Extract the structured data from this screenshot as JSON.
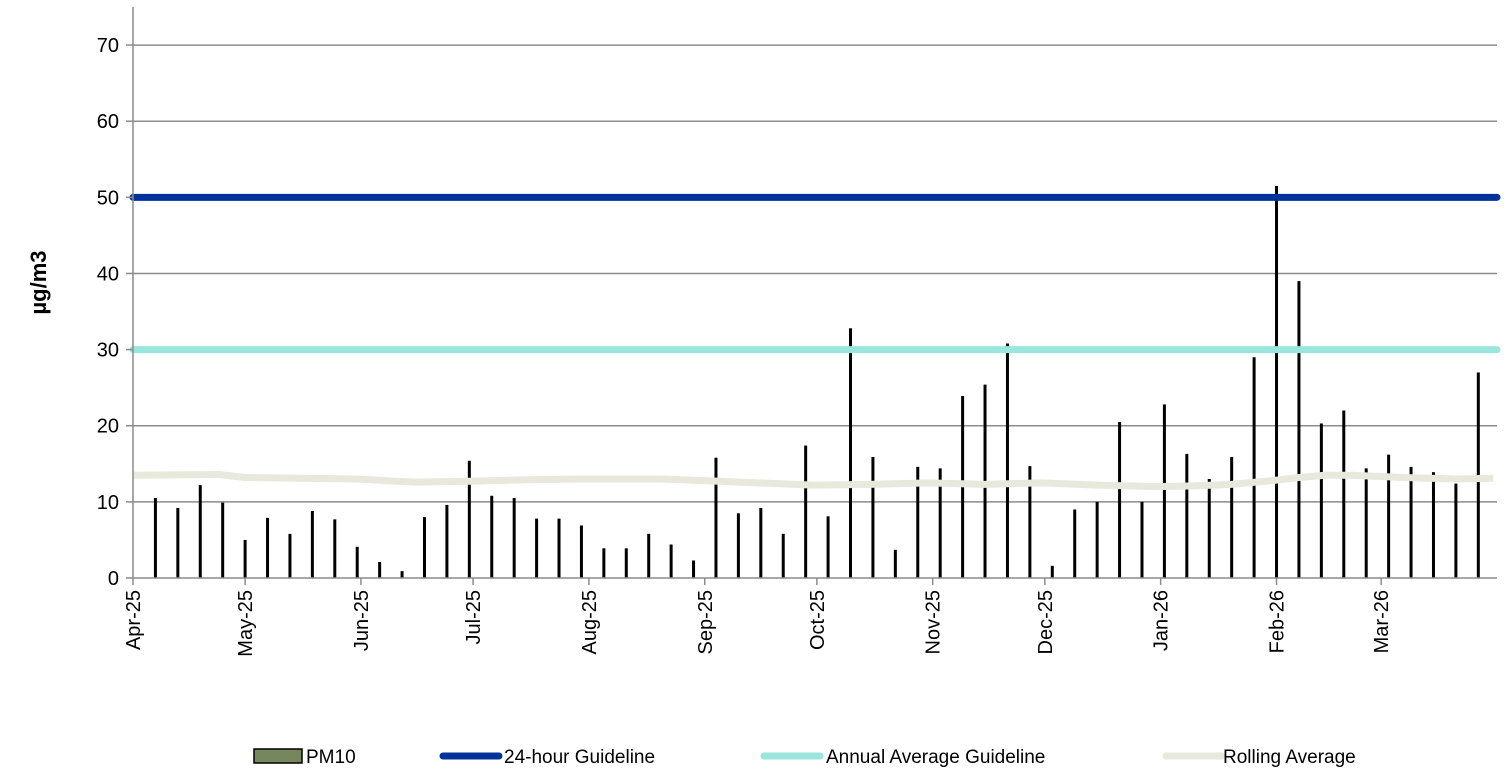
{
  "chart_data": {
    "type": "bar",
    "ylabel": "µg/m3",
    "xlabel": "",
    "ylim": [
      0,
      75
    ],
    "yticks": [
      0,
      10,
      20,
      30,
      40,
      50,
      60,
      70
    ],
    "xlim": [
      "2025-04-01",
      "2026-03-31"
    ],
    "x_tick_labels": [
      "Apr-25",
      "May-25",
      "Jun-25",
      "Jul-25",
      "Aug-25",
      "Sep-25",
      "Oct-25",
      "Nov-25",
      "Dec-25",
      "Jan-26",
      "Feb-26",
      "Mar-26"
    ],
    "x_tick_dates": [
      "2025-04-01",
      "2025-05-01",
      "2025-06-01",
      "2025-07-01",
      "2025-08-01",
      "2025-09-01",
      "2025-10-01",
      "2025-11-01",
      "2025-12-01",
      "2026-01-01",
      "2026-02-01",
      "2026-03-01"
    ],
    "grid": "horizontal",
    "legend_position": "bottom",
    "series": [
      {
        "name": "PM10",
        "kind": "bar",
        "color": "#000000",
        "legend_color": "#76875d",
        "x": [
          "2025-04-07",
          "2025-04-13",
          "2025-04-19",
          "2025-04-25",
          "2025-05-01",
          "2025-05-07",
          "2025-05-13",
          "2025-05-19",
          "2025-05-25",
          "2025-05-31",
          "2025-06-06",
          "2025-06-12",
          "2025-06-18",
          "2025-06-24",
          "2025-06-30",
          "2025-07-06",
          "2025-07-12",
          "2025-07-18",
          "2025-07-24",
          "2025-07-30",
          "2025-08-05",
          "2025-08-11",
          "2025-08-17",
          "2025-08-23",
          "2025-08-29",
          "2025-09-04",
          "2025-09-10",
          "2025-09-16",
          "2025-09-22",
          "2025-09-28",
          "2025-10-04",
          "2025-10-10",
          "2025-10-16",
          "2025-10-22",
          "2025-10-28",
          "2025-11-03",
          "2025-11-09",
          "2025-11-15",
          "2025-11-21",
          "2025-11-27",
          "2025-12-03",
          "2025-12-09",
          "2025-12-15",
          "2025-12-21",
          "2025-12-27",
          "2026-01-02",
          "2026-01-08",
          "2026-01-14",
          "2026-01-20",
          "2026-01-26",
          "2026-02-01",
          "2026-02-07",
          "2026-02-13",
          "2026-02-19",
          "2026-02-25",
          "2026-03-03",
          "2026-03-09",
          "2026-03-15",
          "2026-03-21",
          "2026-03-27"
        ],
        "values": [
          10.5,
          9.2,
          12.2,
          9.9,
          5.0,
          7.9,
          5.8,
          8.8,
          7.7,
          4.1,
          2.1,
          0.9,
          8.0,
          9.6,
          15.4,
          10.8,
          10.5,
          7.8,
          7.8,
          6.9,
          3.9,
          3.9,
          5.8,
          4.4,
          2.3,
          15.8,
          8.5,
          9.2,
          5.8,
          17.4,
          8.1,
          32.8,
          15.9,
          3.7,
          14.6,
          14.4,
          23.9,
          25.4,
          30.8,
          14.7,
          1.6,
          9.0,
          10.0,
          20.5,
          10.0,
          22.8,
          16.3,
          13.0,
          15.9,
          29.0,
          51.5,
          39.0,
          20.3,
          22.0,
          14.4,
          16.2,
          14.6,
          13.9,
          12.4,
          27.0
        ]
      },
      {
        "name": "24-hour Guideline",
        "kind": "hline",
        "color": "#003399",
        "value": 50
      },
      {
        "name": "Annual Average Guideline",
        "kind": "hline",
        "color": "#99e6dd",
        "value": 30
      },
      {
        "name": "Rolling Average",
        "kind": "line",
        "color": "#e8e8dc",
        "x": [
          "2025-04-01",
          "2025-04-24",
          "2025-05-01",
          "2025-05-31",
          "2025-06-15",
          "2025-06-30",
          "2025-07-15",
          "2025-07-31",
          "2025-08-20",
          "2025-08-31",
          "2025-09-15",
          "2025-09-30",
          "2025-10-15",
          "2025-10-31",
          "2025-11-15",
          "2025-11-30",
          "2025-12-15",
          "2025-12-31",
          "2026-01-10",
          "2026-01-20",
          "2026-01-31",
          "2026-02-07",
          "2026-02-14",
          "2026-02-21",
          "2026-03-07",
          "2026-03-21",
          "2026-03-31"
        ],
        "values": [
          13.5,
          13.6,
          13.2,
          13.0,
          12.6,
          12.7,
          12.9,
          13.0,
          13.0,
          12.8,
          12.5,
          12.2,
          12.3,
          12.5,
          12.3,
          12.5,
          12.2,
          12.0,
          12.1,
          12.3,
          12.8,
          13.2,
          13.5,
          13.5,
          13.2,
          13.0,
          13.1
        ]
      }
    ]
  }
}
